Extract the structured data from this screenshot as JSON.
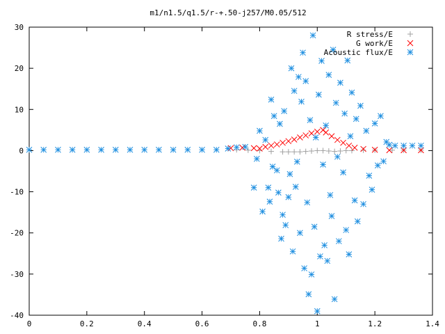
{
  "chart_data": {
    "type": "scatter",
    "title": "m1/n1.5/q1.5/r-+.50-j257/M0.05/512",
    "xlabel": "",
    "ylabel": "",
    "xlim": [
      0,
      1.4
    ],
    "ylim": [
      -40,
      30
    ],
    "x_ticks": [
      "0",
      "0.2",
      "0.4",
      "0.6",
      "0.8",
      "1",
      "1.2",
      "1.4"
    ],
    "y_ticks": [
      "-40",
      "-30",
      "-20",
      "-10",
      "0",
      "10",
      "20",
      "30"
    ],
    "grid": false,
    "legend_position": "top-right",
    "series": [
      {
        "name": "R stress/E",
        "color": "#a0a0a0",
        "marker": "plus",
        "points": [
          [
            0.72,
            0.2
          ],
          [
            0.76,
            0.1
          ],
          [
            0.8,
            0.0
          ],
          [
            0.84,
            -0.2
          ],
          [
            0.88,
            -0.3
          ],
          [
            0.9,
            -0.3
          ],
          [
            0.92,
            -0.3
          ],
          [
            0.94,
            -0.3
          ],
          [
            0.96,
            -0.2
          ],
          [
            0.98,
            -0.1
          ],
          [
            1.0,
            0.0
          ],
          [
            1.02,
            0.0
          ],
          [
            1.04,
            -0.1
          ],
          [
            1.06,
            -0.2
          ],
          [
            1.08,
            -0.1
          ],
          [
            1.1,
            0.0
          ],
          [
            1.12,
            0.0
          ],
          [
            1.16,
            0.1
          ],
          [
            1.2,
            0.1
          ],
          [
            1.26,
            0.1
          ],
          [
            1.3,
            0.1
          ],
          [
            1.36,
            0.1
          ]
        ]
      },
      {
        "name": "G work/E",
        "color": "#ff0000",
        "marker": "cross",
        "points": [
          [
            0.7,
            0.6
          ],
          [
            0.74,
            0.7
          ],
          [
            0.78,
            0.6
          ],
          [
            0.8,
            0.5
          ],
          [
            0.82,
            0.9
          ],
          [
            0.84,
            1.2
          ],
          [
            0.86,
            1.5
          ],
          [
            0.88,
            1.9
          ],
          [
            0.9,
            2.3
          ],
          [
            0.92,
            2.7
          ],
          [
            0.94,
            3.2
          ],
          [
            0.96,
            3.7
          ],
          [
            0.98,
            4.2
          ],
          [
            1.0,
            4.6
          ],
          [
            1.02,
            5.0
          ],
          [
            1.03,
            4.4
          ],
          [
            1.05,
            3.5
          ],
          [
            1.07,
            2.6
          ],
          [
            1.09,
            1.9
          ],
          [
            1.11,
            1.2
          ],
          [
            1.13,
            0.7
          ],
          [
            1.16,
            0.4
          ],
          [
            1.2,
            0.2
          ],
          [
            1.25,
            0.1
          ],
          [
            1.3,
            0.1
          ],
          [
            1.36,
            0.1
          ]
        ]
      },
      {
        "name": "Acoustic flux/E",
        "color": "#1f8fe0",
        "marker": "asterisk",
        "points": [
          [
            0.0,
            0.2
          ],
          [
            0.05,
            0.2
          ],
          [
            0.1,
            0.2
          ],
          [
            0.15,
            0.2
          ],
          [
            0.2,
            0.2
          ],
          [
            0.25,
            0.2
          ],
          [
            0.3,
            0.2
          ],
          [
            0.35,
            0.2
          ],
          [
            0.4,
            0.2
          ],
          [
            0.45,
            0.2
          ],
          [
            0.5,
            0.2
          ],
          [
            0.55,
            0.2
          ],
          [
            0.6,
            0.2
          ],
          [
            0.65,
            0.2
          ],
          [
            0.69,
            0.5
          ],
          [
            0.72,
            0.8
          ],
          [
            0.75,
            0.9
          ],
          [
            0.78,
            -9.0
          ],
          [
            0.79,
            -2.0
          ],
          [
            0.8,
            4.8
          ],
          [
            0.81,
            -14.8
          ],
          [
            0.82,
            2.6
          ],
          [
            0.83,
            -9.0
          ],
          [
            0.835,
            -12.4
          ],
          [
            0.84,
            12.4
          ],
          [
            0.845,
            -3.9
          ],
          [
            0.85,
            8.4
          ],
          [
            0.86,
            -4.8
          ],
          [
            0.865,
            -10.2
          ],
          [
            0.87,
            6.5
          ],
          [
            0.875,
            -21.4
          ],
          [
            0.88,
            -15.6
          ],
          [
            0.885,
            9.6
          ],
          [
            0.89,
            -18.1
          ],
          [
            0.9,
            -11.3
          ],
          [
            0.905,
            -5.7
          ],
          [
            0.91,
            20.0
          ],
          [
            0.915,
            -24.5
          ],
          [
            0.92,
            14.5
          ],
          [
            0.925,
            -8.8
          ],
          [
            0.93,
            -2.7
          ],
          [
            0.935,
            17.9
          ],
          [
            0.94,
            -20.0
          ],
          [
            0.945,
            11.9
          ],
          [
            0.95,
            23.8
          ],
          [
            0.955,
            -28.6
          ],
          [
            0.96,
            16.9
          ],
          [
            0.965,
            -12.6
          ],
          [
            0.97,
            -34.9
          ],
          [
            0.975,
            7.4
          ],
          [
            0.98,
            -30.1
          ],
          [
            0.985,
            28.0
          ],
          [
            0.99,
            -18.5
          ],
          [
            0.995,
            3.2
          ],
          [
            1.0,
            -39.0
          ],
          [
            1.005,
            13.6
          ],
          [
            1.01,
            -25.7
          ],
          [
            1.015,
            21.8
          ],
          [
            1.02,
            -3.4
          ],
          [
            1.025,
            -23.0
          ],
          [
            1.03,
            6.1
          ],
          [
            1.035,
            -26.8
          ],
          [
            1.04,
            18.4
          ],
          [
            1.045,
            -10.8
          ],
          [
            1.05,
            -15.9
          ],
          [
            1.055,
            24.5
          ],
          [
            1.06,
            -36.1
          ],
          [
            1.065,
            11.6
          ],
          [
            1.07,
            -1.5
          ],
          [
            1.075,
            -22.0
          ],
          [
            1.08,
            16.5
          ],
          [
            1.09,
            -5.3
          ],
          [
            1.095,
            9.0
          ],
          [
            1.1,
            -19.3
          ],
          [
            1.105,
            21.9
          ],
          [
            1.11,
            -25.2
          ],
          [
            1.115,
            3.5
          ],
          [
            1.12,
            14.1
          ],
          [
            1.13,
            -12.1
          ],
          [
            1.135,
            7.7
          ],
          [
            1.14,
            -17.2
          ],
          [
            1.15,
            10.9
          ],
          [
            1.16,
            -13.0
          ],
          [
            1.17,
            4.8
          ],
          [
            1.18,
            -6.1
          ],
          [
            1.19,
            -9.5
          ],
          [
            1.2,
            6.6
          ],
          [
            1.21,
            -3.6
          ],
          [
            1.22,
            8.4
          ],
          [
            1.23,
            -2.6
          ],
          [
            1.24,
            2.1
          ],
          [
            1.25,
            1.4
          ],
          [
            1.27,
            1.2
          ],
          [
            1.3,
            1.2
          ],
          [
            1.33,
            1.2
          ],
          [
            1.36,
            1.2
          ]
        ]
      }
    ]
  }
}
